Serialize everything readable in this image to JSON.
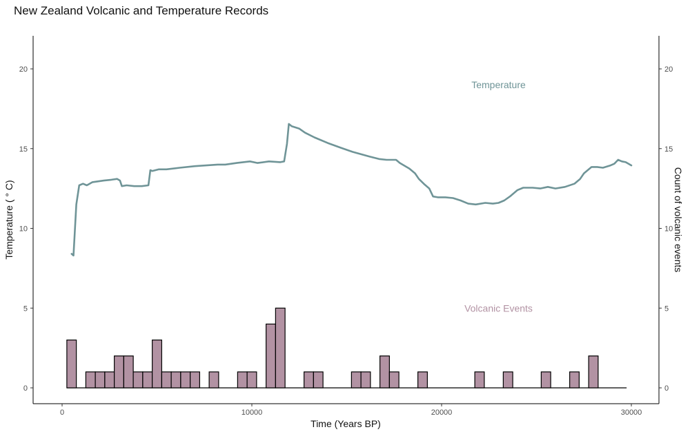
{
  "chart_data": {
    "type": "bar+line",
    "title": "New Zealand Volcanic and Temperature Records",
    "xlabel": "Time (Years BP)",
    "ylabel_left": "Temperature ( ° C)",
    "ylabel_right": "Count of volcanic events",
    "xlim": [
      0,
      30000
    ],
    "ylim": [
      0,
      20
    ],
    "x_ticks": [
      0,
      10000,
      20000,
      30000
    ],
    "y_ticks": [
      0,
      5,
      10,
      15,
      20
    ],
    "grid": false,
    "colors": {
      "temperature": "#6f9497",
      "volcanic": "#b292a3",
      "bar_edge": "#000000"
    },
    "annotations": [
      {
        "text": "Temperature",
        "x": 23000,
        "y": 19,
        "series": "temperature"
      },
      {
        "text": "Volcanic Events",
        "x": 23000,
        "y": 5,
        "series": "volcanic"
      }
    ],
    "histogram": {
      "bin_width": 500,
      "range": [
        250,
        29750
      ],
      "bins": [
        {
          "start": 250,
          "count": 3
        },
        {
          "start": 1250,
          "count": 1
        },
        {
          "start": 1750,
          "count": 1
        },
        {
          "start": 2250,
          "count": 1
        },
        {
          "start": 2750,
          "count": 2
        },
        {
          "start": 3250,
          "count": 2
        },
        {
          "start": 3750,
          "count": 1
        },
        {
          "start": 4250,
          "count": 1
        },
        {
          "start": 4750,
          "count": 3
        },
        {
          "start": 5250,
          "count": 1
        },
        {
          "start": 5750,
          "count": 1
        },
        {
          "start": 6250,
          "count": 1
        },
        {
          "start": 6750,
          "count": 1
        },
        {
          "start": 7750,
          "count": 1
        },
        {
          "start": 9250,
          "count": 1
        },
        {
          "start": 9750,
          "count": 1
        },
        {
          "start": 10750,
          "count": 4
        },
        {
          "start": 11250,
          "count": 5
        },
        {
          "start": 12750,
          "count": 1
        },
        {
          "start": 13250,
          "count": 1
        },
        {
          "start": 15250,
          "count": 1
        },
        {
          "start": 15750,
          "count": 1
        },
        {
          "start": 16750,
          "count": 2
        },
        {
          "start": 17250,
          "count": 1
        },
        {
          "start": 18750,
          "count": 1
        },
        {
          "start": 21750,
          "count": 1
        },
        {
          "start": 23250,
          "count": 1
        },
        {
          "start": 25250,
          "count": 1
        },
        {
          "start": 26750,
          "count": 1
        },
        {
          "start": 27750,
          "count": 2
        }
      ]
    },
    "temperature": {
      "name": "Temperature",
      "points": [
        [
          500,
          8.4
        ],
        [
          600,
          8.3
        ],
        [
          750,
          11.5
        ],
        [
          900,
          12.7
        ],
        [
          1100,
          12.8
        ],
        [
          1300,
          12.7
        ],
        [
          1600,
          12.9
        ],
        [
          2200,
          13.0
        ],
        [
          2600,
          13.05
        ],
        [
          2900,
          13.1
        ],
        [
          3050,
          13.0
        ],
        [
          3150,
          12.65
        ],
        [
          3400,
          12.7
        ],
        [
          3800,
          12.65
        ],
        [
          4200,
          12.65
        ],
        [
          4550,
          12.7
        ],
        [
          4650,
          13.65
        ],
        [
          4750,
          13.6
        ],
        [
          5100,
          13.7
        ],
        [
          5500,
          13.7
        ],
        [
          6200,
          13.8
        ],
        [
          7000,
          13.9
        ],
        [
          7600,
          13.95
        ],
        [
          8200,
          14.0
        ],
        [
          8600,
          14.0
        ],
        [
          9200,
          14.1
        ],
        [
          9900,
          14.2
        ],
        [
          10300,
          14.1
        ],
        [
          10900,
          14.2
        ],
        [
          11500,
          14.15
        ],
        [
          11700,
          14.2
        ],
        [
          11850,
          15.3
        ],
        [
          11950,
          16.55
        ],
        [
          12100,
          16.4
        ],
        [
          12500,
          16.25
        ],
        [
          12800,
          16.0
        ],
        [
          13300,
          15.7
        ],
        [
          14000,
          15.35
        ],
        [
          14700,
          15.05
        ],
        [
          15300,
          14.8
        ],
        [
          16200,
          14.5
        ],
        [
          16700,
          14.35
        ],
        [
          17100,
          14.3
        ],
        [
          17600,
          14.3
        ],
        [
          17800,
          14.1
        ],
        [
          18300,
          13.75
        ],
        [
          18600,
          13.45
        ],
        [
          18800,
          13.1
        ],
        [
          19100,
          12.75
        ],
        [
          19350,
          12.5
        ],
        [
          19550,
          12.0
        ],
        [
          19800,
          11.95
        ],
        [
          20200,
          11.95
        ],
        [
          20600,
          11.9
        ],
        [
          21000,
          11.75
        ],
        [
          21400,
          11.55
        ],
        [
          21800,
          11.5
        ],
        [
          22300,
          11.6
        ],
        [
          22700,
          11.55
        ],
        [
          23000,
          11.6
        ],
        [
          23300,
          11.75
        ],
        [
          23600,
          12.0
        ],
        [
          24000,
          12.4
        ],
        [
          24300,
          12.55
        ],
        [
          24800,
          12.55
        ],
        [
          25200,
          12.5
        ],
        [
          25600,
          12.6
        ],
        [
          26000,
          12.5
        ],
        [
          26500,
          12.6
        ],
        [
          27000,
          12.8
        ],
        [
          27300,
          13.1
        ],
        [
          27500,
          13.45
        ],
        [
          27900,
          13.85
        ],
        [
          28200,
          13.85
        ],
        [
          28500,
          13.8
        ],
        [
          28900,
          13.95
        ],
        [
          29100,
          14.05
        ],
        [
          29300,
          14.3
        ],
        [
          29500,
          14.2
        ],
        [
          29700,
          14.15
        ],
        [
          30000,
          13.95
        ]
      ]
    }
  }
}
